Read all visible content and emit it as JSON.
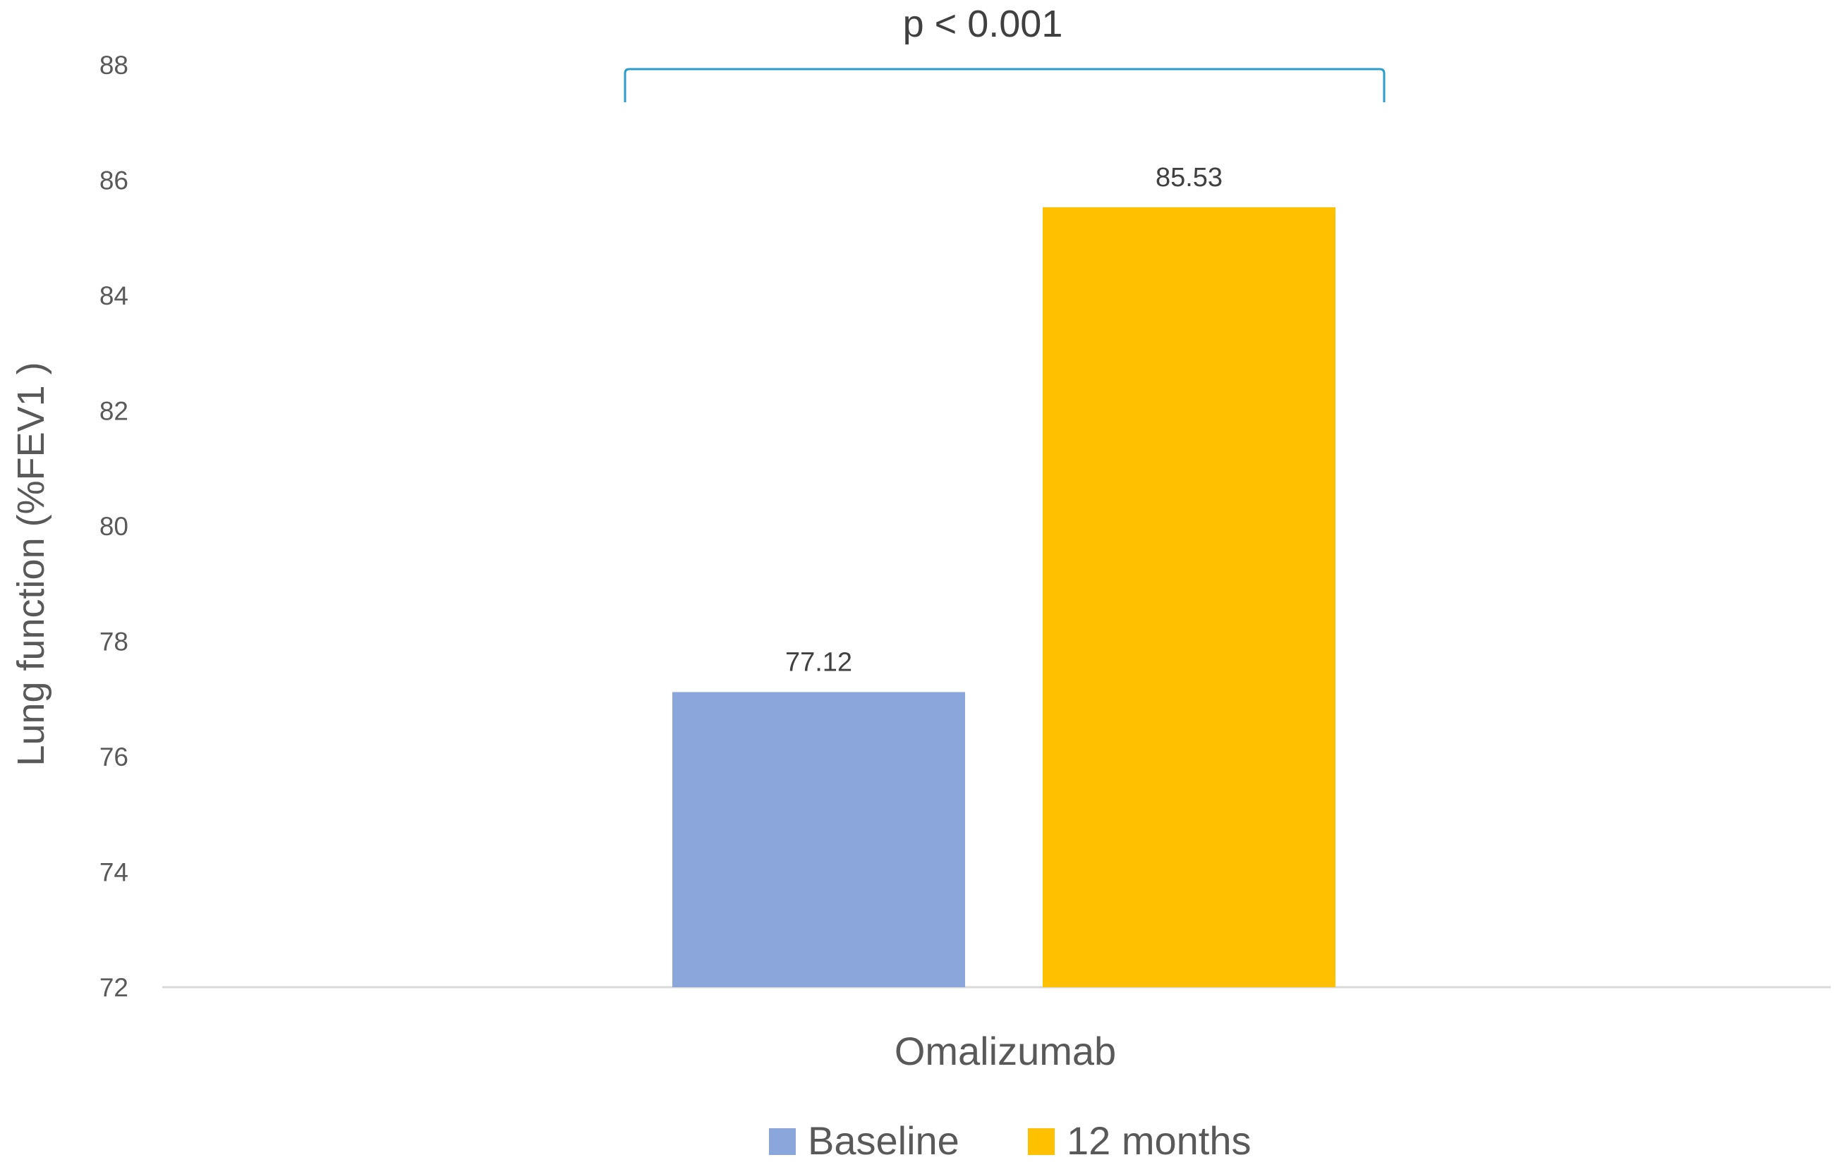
{
  "chart_data": {
    "type": "bar",
    "title": "",
    "xlabel": "",
    "ylabel": "Lung function (%FEV1 )",
    "categories": [
      "Omalizumab"
    ],
    "series": [
      {
        "name": "Baseline",
        "values": [
          77.12
        ],
        "color": "#8BA6DA"
      },
      {
        "name": "12 months",
        "values": [
          85.53
        ],
        "color": "#FFC000"
      }
    ],
    "data_labels": [
      "77.12",
      "85.53"
    ],
    "ylim": [
      72,
      88
    ],
    "yticks": [
      "72",
      "74",
      "76",
      "78",
      "80",
      "82",
      "84",
      "86",
      "88"
    ],
    "grid": false,
    "legend": "bottom",
    "annotation": {
      "text": "p < 0.001",
      "color": "#2E9CCB"
    }
  }
}
